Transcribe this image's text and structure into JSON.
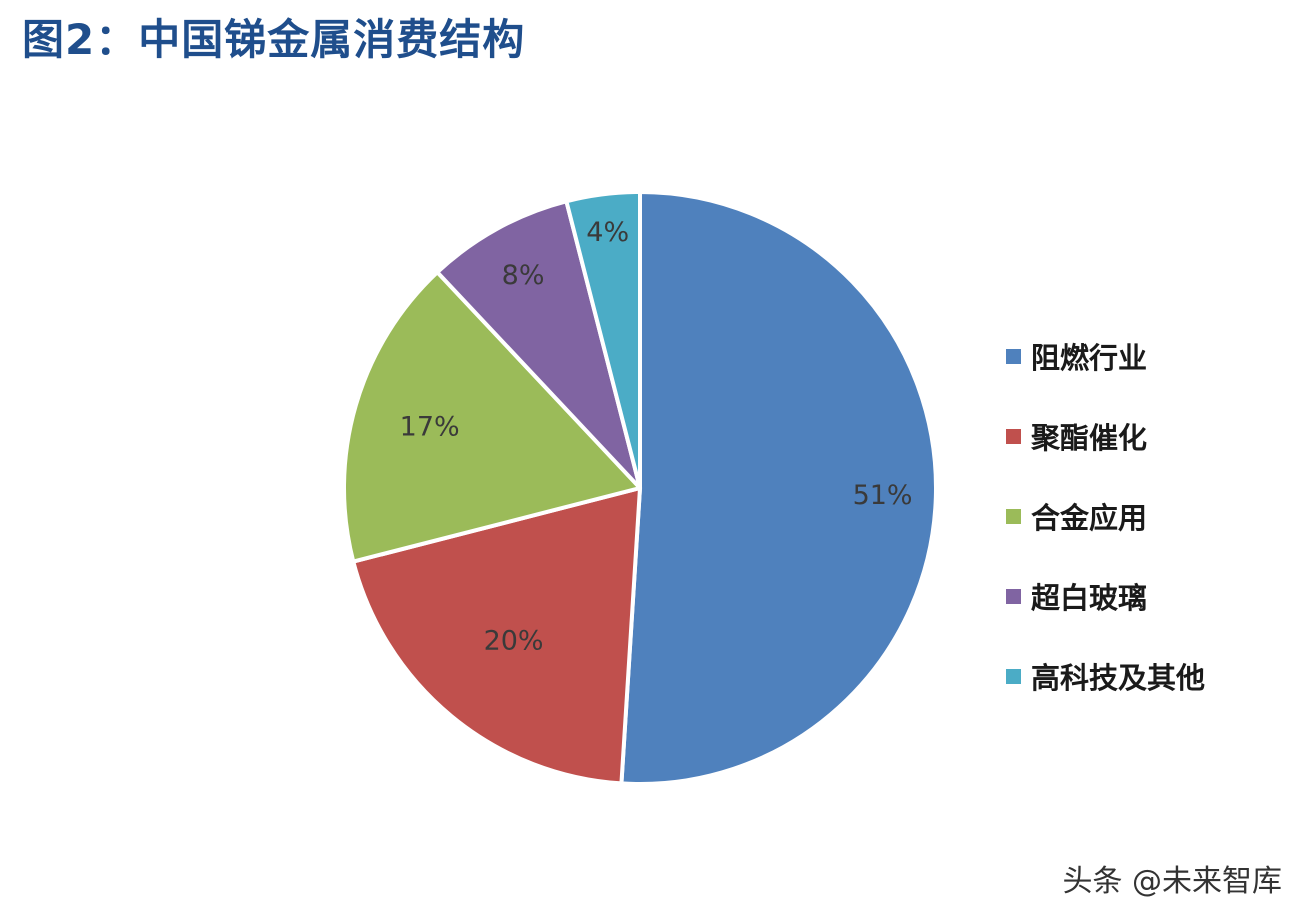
{
  "chart_data": {
    "type": "pie",
    "title": "图2：中国锑金属消费结构",
    "categories": [
      "阻燃行业",
      "聚酯催化",
      "合金应用",
      "超白玻璃",
      "高科技及其他"
    ],
    "values": [
      51,
      20,
      17,
      8,
      4
    ],
    "data_labels": [
      "51%",
      "20%",
      "17%",
      "8%",
      "4%"
    ],
    "colors": [
      "#4f81bd",
      "#c0504d",
      "#9bbb59",
      "#8064a2",
      "#4bacc6"
    ],
    "start": "12 o'clock",
    "direction": "clockwise",
    "legend_position": "right"
  },
  "watermark": "头条 @未来智库"
}
